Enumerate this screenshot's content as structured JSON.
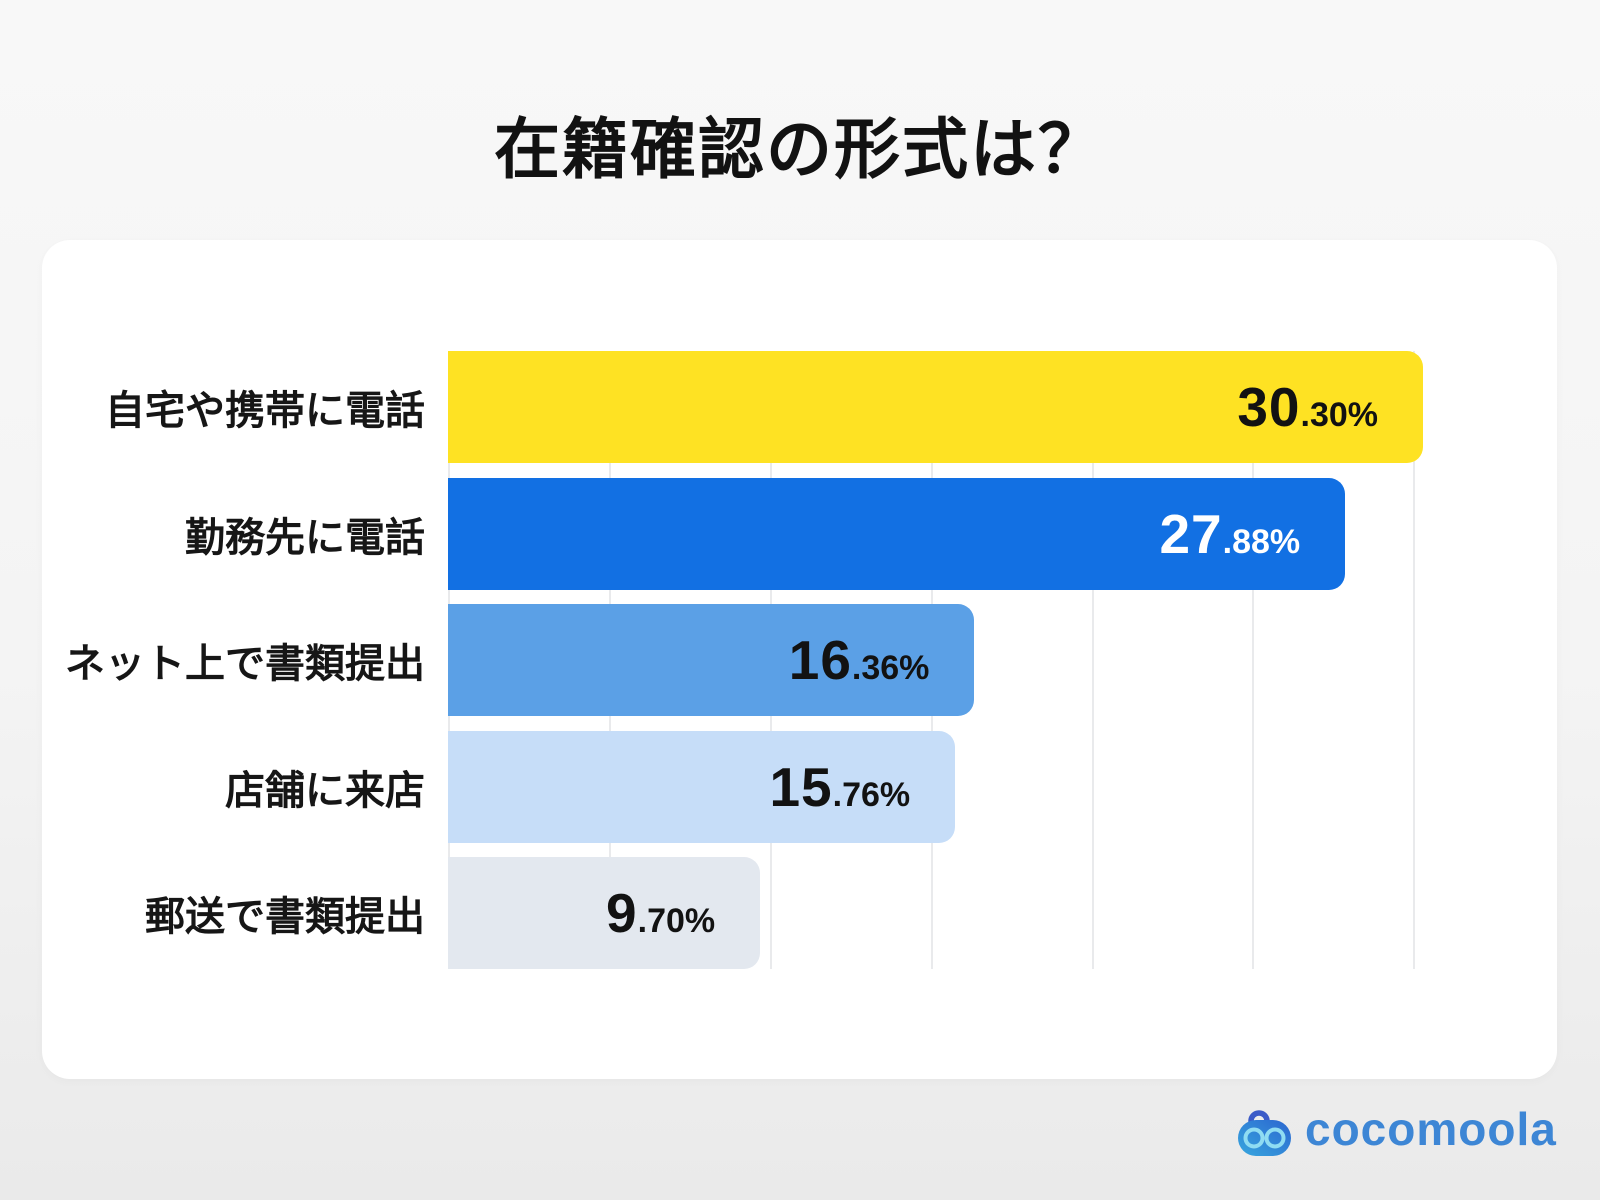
{
  "title": "在籍確認の形式は？",
  "chart_data": {
    "type": "bar",
    "orientation": "horizontal",
    "title": "在籍確認の形式は？",
    "categories": [
      "自宅や携帯に電話",
      "勤務先に電話",
      "ネット上で書類提出",
      "店舗に来店",
      "郵送で書類提出"
    ],
    "values": [
      30.3,
      27.88,
      16.36,
      15.76,
      9.7
    ],
    "value_labels": [
      "30.30%",
      "27.88%",
      "16.36%",
      "15.76%",
      "9.70%"
    ],
    "xlim": [
      0,
      30.3
    ],
    "gridlines_pct": [
      0,
      5,
      10,
      15,
      20,
      25,
      30
    ],
    "grid_on": true,
    "legend": "none",
    "bars": [
      {
        "label": "自宅や携帯に電話",
        "value": 30.3,
        "value_int": "30",
        "value_frac": ".30%",
        "color": "#fee223",
        "text_color": "#121212"
      },
      {
        "label": "勤務先に電話",
        "value": 27.88,
        "value_int": "27",
        "value_frac": ".88%",
        "color": "#1270e3",
        "text_color": "#ffffff"
      },
      {
        "label": "ネット上で書類提出",
        "value": 16.36,
        "value_int": "16",
        "value_frac": ".36%",
        "color": "#5ba0e6",
        "text_color": "#121212"
      },
      {
        "label": "店舗に来店",
        "value": 15.76,
        "value_int": "15",
        "value_frac": ".76%",
        "color": "#c6ddf8",
        "text_color": "#121212"
      },
      {
        "label": "郵送で書類提出",
        "value": 9.7,
        "value_int": "9",
        "value_frac": ".70%",
        "color": "#e3e8ef",
        "text_color": "#121212"
      }
    ]
  },
  "branding": {
    "logo_text": "cocomoola",
    "logo_color": "#3d86d5",
    "icon": "cocomoola-robot-icon",
    "icon_colors": {
      "body_left": "#38a7de",
      "body_right": "#2b66d0",
      "eye_ring": "#8fdcf2",
      "antenna": "#3b5bc8"
    }
  },
  "style_colors": {
    "page_background_top": "#f8f8f8",
    "page_background_bottom": "#eaeaea",
    "card_background": "#ffffff",
    "gridline": "#e9eaec",
    "title_color": "#121212"
  }
}
